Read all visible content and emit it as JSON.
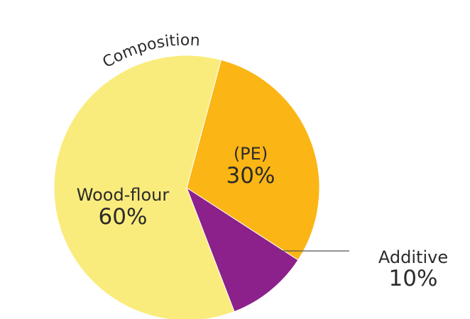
{
  "chart_data": {
    "type": "pie",
    "title": "Composition",
    "slices": [
      {
        "label": "(PE)",
        "value": 30,
        "value_label": "30%",
        "color": "#FBB515"
      },
      {
        "label": "Additive",
        "value": 10,
        "value_label": "10%",
        "color": "#8C218B"
      },
      {
        "label": "Wood-flour",
        "value": 60,
        "value_label": "60%",
        "color": "#FAEC7C"
      }
    ],
    "start_angle_deg": 15,
    "direction": "clockwise"
  }
}
